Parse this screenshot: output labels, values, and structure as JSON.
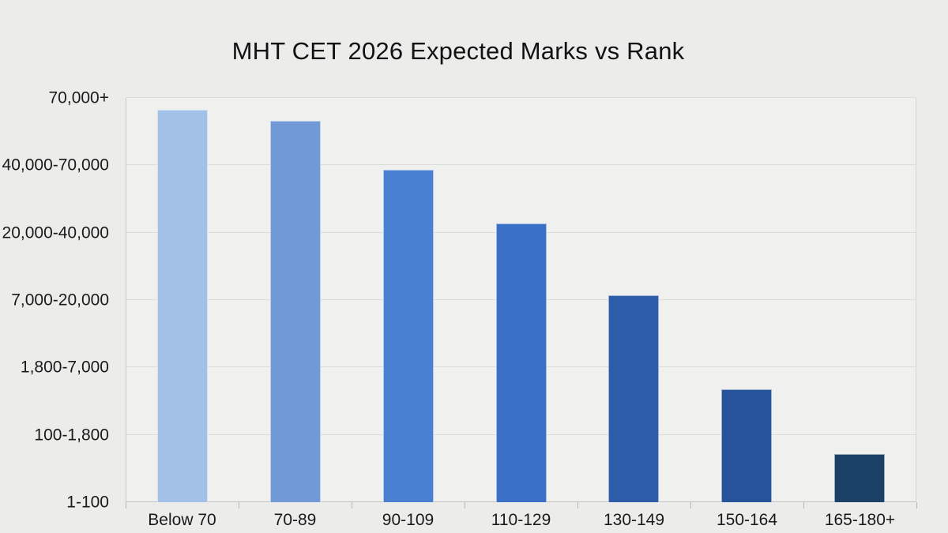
{
  "chart_data": {
    "type": "bar",
    "title": "MHT CET 2026 Expected Marks vs Rank",
    "categories": [
      "Below 70",
      "70-89",
      "90-109",
      "110-129",
      "130-149",
      "150-164",
      "165-180+"
    ],
    "y_tick_labels": [
      "1-100",
      "100-1,800",
      "1,800-7,000",
      "7,000-20,000",
      "20,000-40,000",
      "40,000-70,000",
      "70,000+"
    ],
    "y_axis_type": "categorical rank bands, bottom to top",
    "values": [
      5.82,
      5.66,
      4.93,
      4.14,
      3.07,
      1.68,
      0.72
    ],
    "ylim": [
      0,
      6
    ],
    "bar_colors": [
      "#a3c0e6",
      "#7199d5",
      "#4a80d2",
      "#3a70c6",
      "#2d5ca8",
      "#26549a",
      "#1c4166"
    ],
    "xlabel": "",
    "ylabel": "",
    "grid": "horizontal gridlines at each y tick",
    "legend": "none"
  },
  "colors": {
    "page_background": "#ecedeb",
    "plot_background": "#f0f1ef",
    "gridline": "#dadcdb",
    "axis_line": "#c2c4c3",
    "text": "#1a1a1a"
  }
}
